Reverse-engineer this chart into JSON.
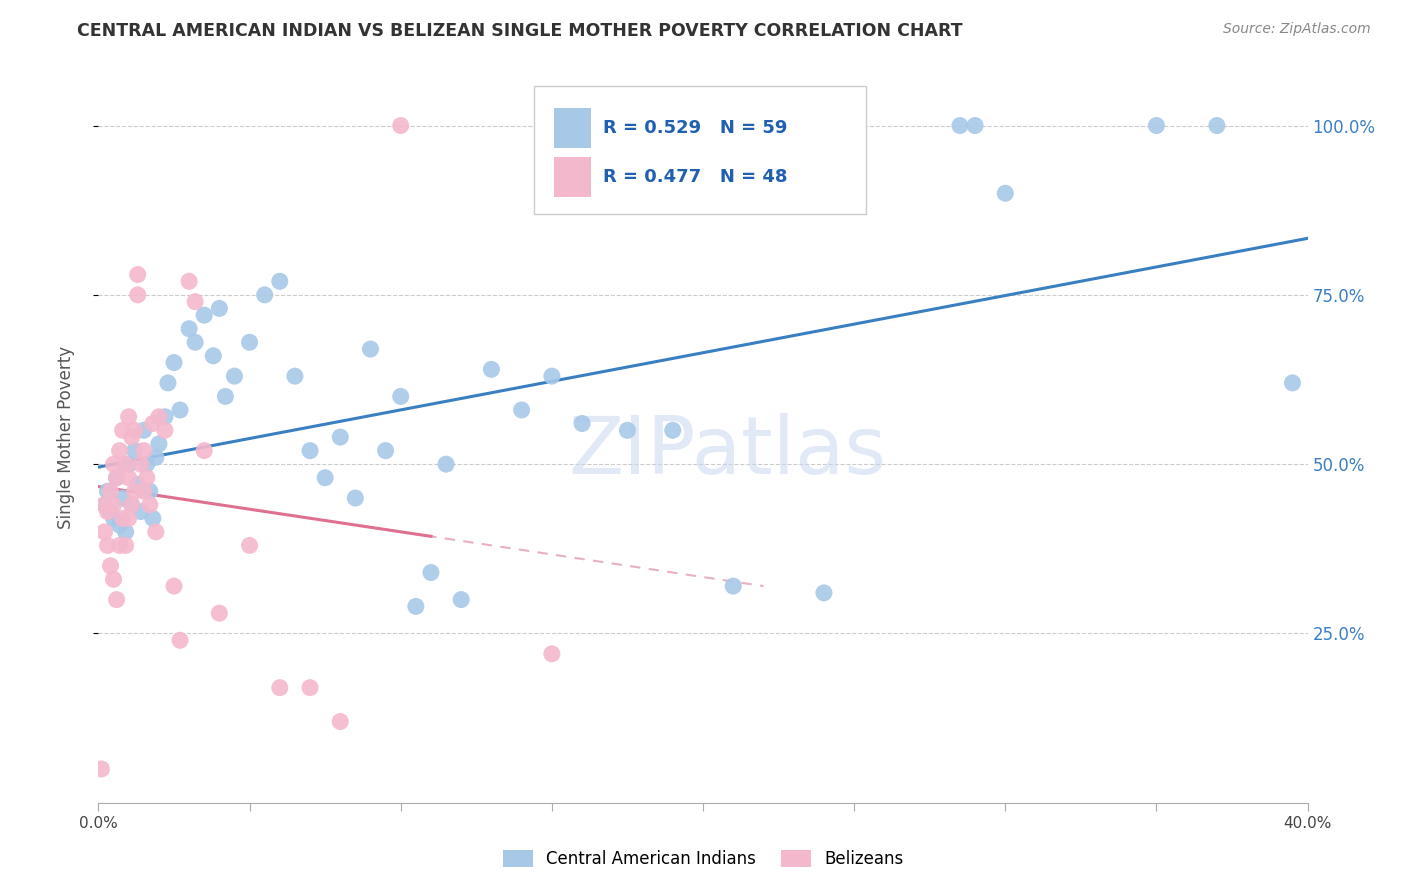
{
  "title": "CENTRAL AMERICAN INDIAN VS BELIZEAN SINGLE MOTHER POVERTY CORRELATION CHART",
  "source": "Source: ZipAtlas.com",
  "ylabel": "Single Mother Poverty",
  "xlim": [
    0.0,
    0.4
  ],
  "ylim": [
    0.0,
    1.08
  ],
  "xticks": [
    0.0,
    0.05,
    0.1,
    0.15,
    0.2,
    0.25,
    0.3,
    0.35,
    0.4
  ],
  "xticklabels": [
    "0.0%",
    "",
    "",
    "",
    "",
    "",
    "",
    "",
    "40.0%"
  ],
  "ytick_positions": [
    0.25,
    0.5,
    0.75,
    1.0
  ],
  "ytick_labels": [
    "25.0%",
    "50.0%",
    "75.0%",
    "100.0%"
  ],
  "legend_labels": [
    "Central American Indians",
    "Belizeans"
  ],
  "blue_R": "R = 0.529",
  "blue_N": "N = 59",
  "pink_R": "R = 0.477",
  "pink_N": "N = 48",
  "blue_color": "#a8c8e8",
  "pink_color": "#f4b8cc",
  "blue_line_color": "#3a7fc1",
  "pink_line_color": "#e07090",
  "pink_dash_color": "#e8b0c0",
  "watermark": "ZIPatlas",
  "blue_points_x": [
    0.002,
    0.003,
    0.004,
    0.005,
    0.006,
    0.007,
    0.008,
    0.009,
    0.01,
    0.011,
    0.012,
    0.013,
    0.014,
    0.015,
    0.016,
    0.017,
    0.018,
    0.019,
    0.02,
    0.022,
    0.023,
    0.025,
    0.027,
    0.03,
    0.032,
    0.035,
    0.038,
    0.04,
    0.042,
    0.045,
    0.05,
    0.055,
    0.06,
    0.065,
    0.07,
    0.075,
    0.08,
    0.085,
    0.09,
    0.095,
    0.1,
    0.105,
    0.11,
    0.115,
    0.12,
    0.13,
    0.14,
    0.15,
    0.16,
    0.175,
    0.19,
    0.21,
    0.24,
    0.285,
    0.29,
    0.3,
    0.35,
    0.37,
    0.395
  ],
  "blue_points_y": [
    0.44,
    0.46,
    0.43,
    0.42,
    0.48,
    0.41,
    0.45,
    0.4,
    0.5,
    0.44,
    0.52,
    0.47,
    0.43,
    0.55,
    0.5,
    0.46,
    0.42,
    0.51,
    0.53,
    0.57,
    0.62,
    0.65,
    0.58,
    0.7,
    0.68,
    0.72,
    0.66,
    0.73,
    0.6,
    0.63,
    0.68,
    0.75,
    0.77,
    0.63,
    0.52,
    0.48,
    0.54,
    0.45,
    0.67,
    0.52,
    0.6,
    0.29,
    0.34,
    0.5,
    0.3,
    0.64,
    0.58,
    0.63,
    0.56,
    0.55,
    0.55,
    0.32,
    0.31,
    1.0,
    1.0,
    0.9,
    1.0,
    1.0,
    0.62
  ],
  "pink_points_x": [
    0.001,
    0.002,
    0.002,
    0.003,
    0.003,
    0.004,
    0.004,
    0.005,
    0.005,
    0.005,
    0.006,
    0.006,
    0.007,
    0.007,
    0.008,
    0.008,
    0.009,
    0.009,
    0.01,
    0.01,
    0.01,
    0.011,
    0.011,
    0.012,
    0.012,
    0.013,
    0.013,
    0.014,
    0.015,
    0.015,
    0.016,
    0.017,
    0.018,
    0.019,
    0.02,
    0.022,
    0.025,
    0.027,
    0.03,
    0.032,
    0.035,
    0.04,
    0.05,
    0.06,
    0.07,
    0.08,
    0.1,
    0.15
  ],
  "pink_points_y": [
    0.05,
    0.44,
    0.4,
    0.43,
    0.38,
    0.46,
    0.35,
    0.5,
    0.44,
    0.33,
    0.48,
    0.3,
    0.52,
    0.38,
    0.55,
    0.42,
    0.5,
    0.38,
    0.57,
    0.48,
    0.42,
    0.54,
    0.44,
    0.55,
    0.46,
    0.78,
    0.75,
    0.5,
    0.52,
    0.46,
    0.48,
    0.44,
    0.56,
    0.4,
    0.57,
    0.55,
    0.32,
    0.24,
    0.77,
    0.74,
    0.52,
    0.28,
    0.38,
    0.17,
    0.17,
    0.12,
    1.0,
    0.22
  ]
}
